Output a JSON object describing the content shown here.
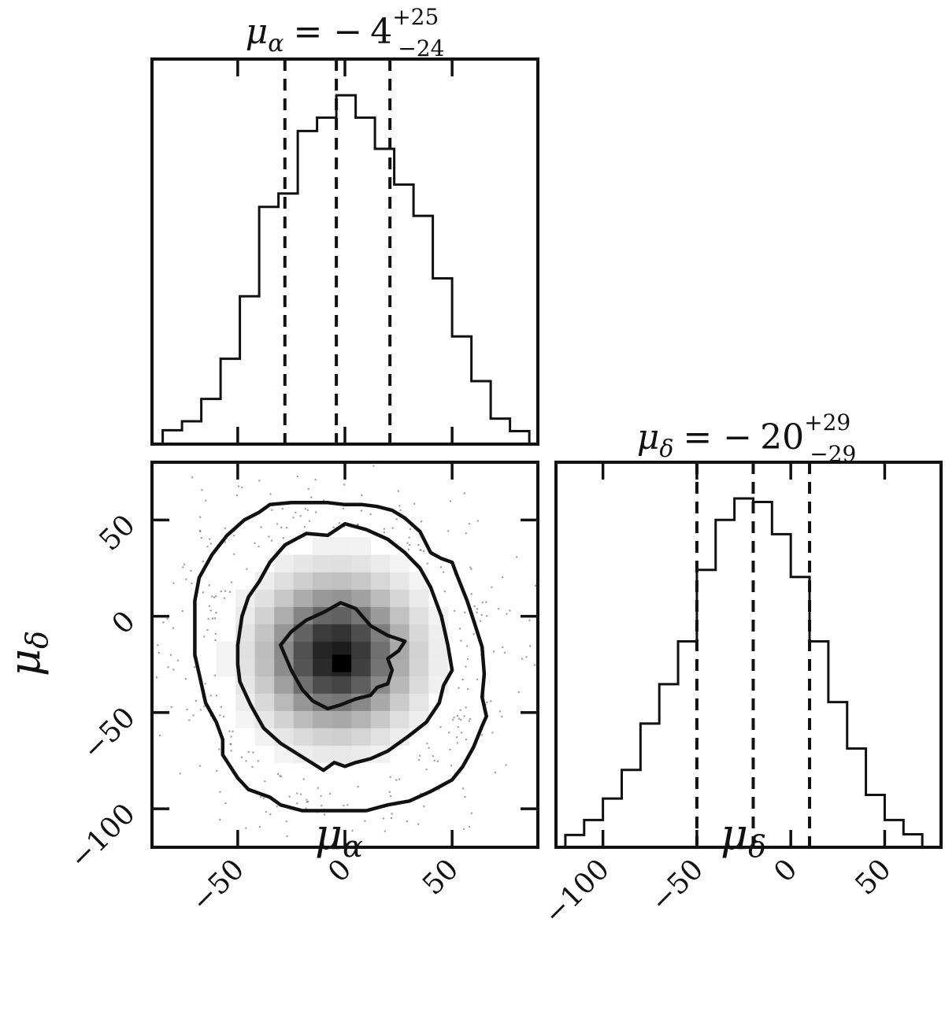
{
  "chart_data": {
    "type": "corner",
    "panels": [
      {
        "panel": "hist-mu-alpha",
        "type": "histogram",
        "title": "μα = − 4 +25 −24",
        "title_parts": {
          "symbol": "μ",
          "sub": "α",
          "eq": "= −",
          "value": "4",
          "plus": "+25",
          "minus": "−24"
        },
        "xlim": [
          -90,
          90
        ],
        "xticks": [
          -50,
          0,
          50
        ],
        "quantiles": [
          -28,
          -4,
          21
        ],
        "bin_width": 9,
        "bins": [
          {
            "x0": -85,
            "count": 5
          },
          {
            "x0": -76,
            "count": 15
          },
          {
            "x0": -67,
            "count": 40
          },
          {
            "x0": -58,
            "count": 85
          },
          {
            "x0": -49,
            "count": 155
          },
          {
            "x0": -40,
            "count": 255
          },
          {
            "x0": -31,
            "count": 270
          },
          {
            "x0": -22,
            "count": 340
          },
          {
            "x0": -13,
            "count": 355
          },
          {
            "x0": -4,
            "count": 380
          },
          {
            "x0": 5,
            "count": 355
          },
          {
            "x0": 14,
            "count": 320
          },
          {
            "x0": 23,
            "count": 280
          },
          {
            "x0": 32,
            "count": 245
          },
          {
            "x0": 41,
            "count": 175
          },
          {
            "x0": 50,
            "count": 110
          },
          {
            "x0": 59,
            "count": 60
          },
          {
            "x0": 68,
            "count": 18
          },
          {
            "x0": 77,
            "count": 4
          }
        ]
      },
      {
        "panel": "scatter-2d",
        "type": "scatter-density",
        "xlabel": "μα",
        "ylabel": "μδ",
        "xlim": [
          -90,
          90
        ],
        "ylim": [
          -120,
          80
        ],
        "xticks": [
          -50,
          0,
          50
        ],
        "yticks": [
          -100,
          -50,
          0,
          50
        ],
        "density_peak": [
          -4,
          -20
        ],
        "contours": [
          {
            "level": "inner",
            "points": [
              [
                -30,
                -15
              ],
              [
                -25,
                -8
              ],
              [
                -18,
                -2
              ],
              [
                -10,
                2
              ],
              [
                -2,
                7
              ],
              [
                5,
                4
              ],
              [
                12,
                -5
              ],
              [
                20,
                -10
              ],
              [
                28,
                -13
              ],
              [
                25,
                -18
              ],
              [
                20,
                -22
              ],
              [
                22,
                -28
              ],
              [
                20,
                -35
              ],
              [
                15,
                -37
              ],
              [
                12,
                -41
              ],
              [
                5,
                -43
              ],
              [
                -2,
                -46
              ],
              [
                -8,
                -48
              ],
              [
                -15,
                -44
              ],
              [
                -20,
                -38
              ],
              [
                -25,
                -28
              ]
            ]
          },
          {
            "level": "middle",
            "points": [
              [
                -50,
                -15
              ],
              [
                -48,
                0
              ],
              [
                -45,
                10
              ],
              [
                -40,
                18
              ],
              [
                -35,
                28
              ],
              [
                -28,
                37
              ],
              [
                -18,
                43
              ],
              [
                -8,
                42
              ],
              [
                0,
                48
              ],
              [
                10,
                45
              ],
              [
                20,
                40
              ],
              [
                28,
                33
              ],
              [
                35,
                25
              ],
              [
                40,
                15
              ],
              [
                45,
                0
              ],
              [
                48,
                -15
              ],
              [
                50,
                -28
              ],
              [
                46,
                -36
              ],
              [
                44,
                -45
              ],
              [
                38,
                -55
              ],
              [
                30,
                -62
              ],
              [
                20,
                -70
              ],
              [
                12,
                -74
              ],
              [
                5,
                -76
              ],
              [
                0,
                -78
              ],
              [
                -5,
                -76
              ],
              [
                -10,
                -80
              ],
              [
                -20,
                -73
              ],
              [
                -30,
                -66
              ],
              [
                -38,
                -58
              ],
              [
                -44,
                -46
              ],
              [
                -49,
                -34
              ],
              [
                -50,
                -25
              ]
            ]
          },
          {
            "level": "outer",
            "points": [
              [
                -70,
                -10
              ],
              [
                -70,
                8
              ],
              [
                -68,
                20
              ],
              [
                -62,
                32
              ],
              [
                -55,
                42
              ],
              [
                -47,
                50
              ],
              [
                -40,
                54
              ],
              [
                -35,
                58
              ],
              [
                -25,
                59
              ],
              [
                -15,
                59
              ],
              [
                -8,
                59
              ],
              [
                0,
                58
              ],
              [
                8,
                58
              ],
              [
                15,
                57
              ],
              [
                22,
                55
              ],
              [
                28,
                51
              ],
              [
                35,
                44
              ],
              [
                40,
                33
              ],
              [
                45,
                30
              ],
              [
                50,
                28
              ],
              [
                52,
                22
              ],
              [
                57,
                8
              ],
              [
                60,
                -2
              ],
              [
                64,
                -16
              ],
              [
                65,
                -30
              ],
              [
                64,
                -42
              ],
              [
                66,
                -52
              ],
              [
                64,
                -57
              ],
              [
                60,
                -68
              ],
              [
                55,
                -78
              ],
              [
                50,
                -85
              ],
              [
                40,
                -91
              ],
              [
                30,
                -96
              ],
              [
                20,
                -98
              ],
              [
                10,
                -101
              ],
              [
                0,
                -101
              ],
              [
                -10,
                -101
              ],
              [
                -20,
                -101
              ],
              [
                -30,
                -98
              ],
              [
                -35,
                -94
              ],
              [
                -45,
                -90
              ],
              [
                -50,
                -84
              ],
              [
                -57,
                -72
              ],
              [
                -57,
                -64
              ],
              [
                -60,
                -55
              ],
              [
                -65,
                -45
              ],
              [
                -68,
                -30
              ],
              [
                -70,
                -20
              ]
            ]
          }
        ]
      },
      {
        "panel": "hist-mu-delta",
        "type": "histogram",
        "title": "μδ = − 20 +29 −29",
        "title_parts": {
          "symbol": "μ",
          "sub": "δ",
          "eq": "= −",
          "value": "20",
          "plus": "+29",
          "minus": "−29"
        },
        "xlabel": "μδ",
        "xlim": [
          -125,
          80
        ],
        "xticks": [
          -100,
          -50,
          0,
          50
        ],
        "quantiles": [
          -50,
          -20,
          10
        ],
        "bin_width": 10,
        "bins": [
          {
            "x0": -120,
            "count": 4
          },
          {
            "x0": -110,
            "count": 25
          },
          {
            "x0": -100,
            "count": 55
          },
          {
            "x0": -90,
            "count": 95
          },
          {
            "x0": -80,
            "count": 160
          },
          {
            "x0": -70,
            "count": 215
          },
          {
            "x0": -60,
            "count": 275
          },
          {
            "x0": -50,
            "count": 375
          },
          {
            "x0": -40,
            "count": 445
          },
          {
            "x0": -30,
            "count": 475
          },
          {
            "x0": -20,
            "count": 470
          },
          {
            "x0": -10,
            "count": 425
          },
          {
            "x0": 0,
            "count": 365
          },
          {
            "x0": 10,
            "count": 275
          },
          {
            "x0": 20,
            "count": 190
          },
          {
            "x0": 30,
            "count": 125
          },
          {
            "x0": 40,
            "count": 60
          },
          {
            "x0": 50,
            "count": 25
          },
          {
            "x0": 60,
            "count": 5
          }
        ]
      }
    ]
  },
  "labels": {
    "xlabel_alpha_sym": "μ",
    "xlabel_alpha_sub": "α",
    "xlabel_delta_sym": "μ",
    "xlabel_delta_sub": "δ",
    "ylabel_delta_sym": "μ",
    "ylabel_delta_sub": "δ"
  }
}
